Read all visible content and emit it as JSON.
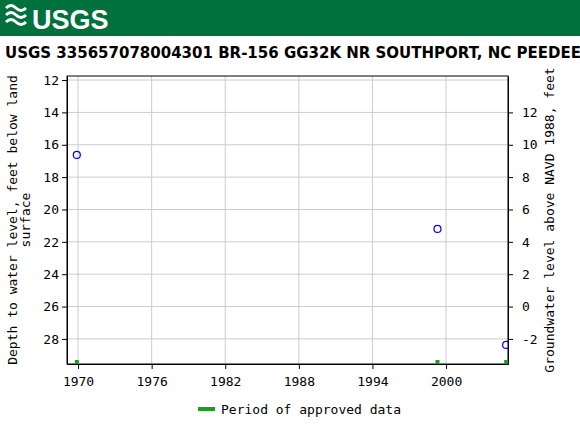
{
  "chart_data": {
    "type": "scatter",
    "header": "USGS",
    "title": "USGS 335657078004301 BR-156 GG32K NR SOUTHPORT, NC PEEDEE",
    "y_label": [
      "Depth to water level, feet below land",
      "surface"
    ],
    "y2_label": "Groundwater level above NAVD 1988, feet",
    "x": [
      1969.9,
      1999.3,
      2004.9
    ],
    "series": [
      {
        "values": [
          16.63,
          21.2,
          28.37
        ],
        "color": "#0000ff",
        "marker": "circle"
      }
    ],
    "approved_periods": {
      "name": "Period of approved data",
      "color": "#229922",
      "x": [
        1969.9,
        1999.3,
        2004.9
      ]
    },
    "xlim": [
      1969.1,
      2005.05
    ],
    "xticks": [
      1970,
      1976,
      1982,
      1988,
      1994,
      2000
    ],
    "ylim": [
      29.55,
      11.75
    ],
    "yticks": [
      12,
      14,
      16,
      18,
      20,
      22,
      24,
      26,
      28
    ],
    "y2lim": [
      -3.55,
      14.25
    ],
    "y2ticks": [
      -2,
      0,
      2,
      4,
      6,
      8,
      10,
      12
    ],
    "grid": true
  }
}
